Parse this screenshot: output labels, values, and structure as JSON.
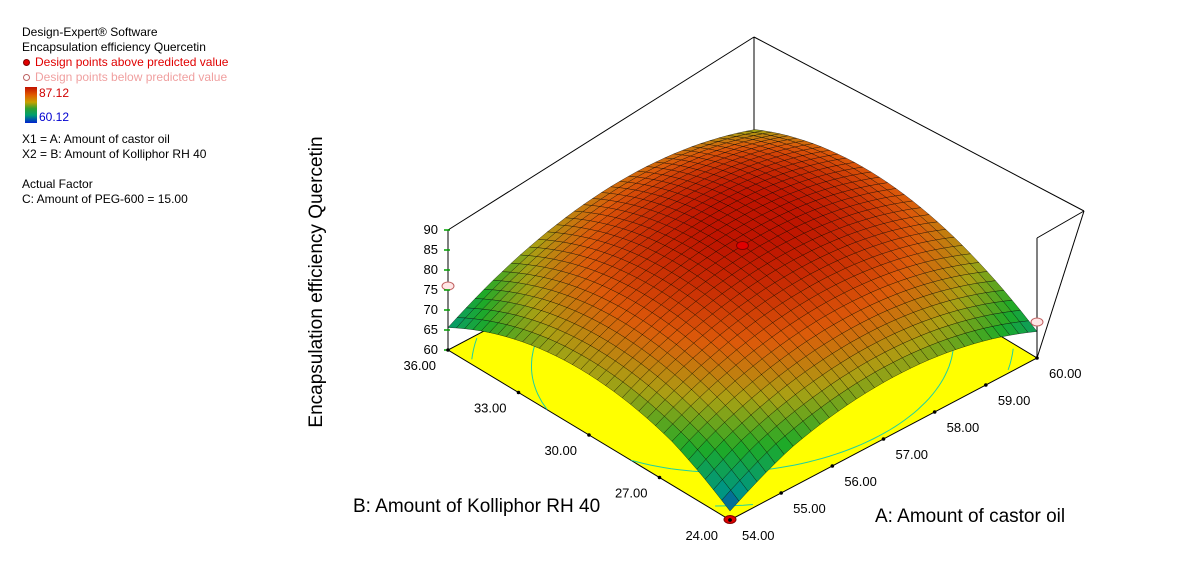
{
  "header": {
    "software": "Design-Expert® Software",
    "response": "Encapsulation efficiency Quercetin",
    "above_label": "Design points above predicted value",
    "below_label": "Design points below predicted value",
    "color_max": "87.12",
    "color_min": "60.12",
    "x1_label": "X1 = A: Amount of castor oil",
    "x2_label": "X2 = B: Amount of Kolliphor RH 40",
    "actual_factor_title": "Actual Factor",
    "actual_factor_value": "C: Amount of PEG-600 = 15.00"
  },
  "colors": {
    "above_point": "#e00000",
    "below_point": "#ffffff",
    "floor": "#ffff00",
    "contour_high": "#e02020",
    "contour_mid": "#20d0a0"
  },
  "chart_data": {
    "type": "surface-3d",
    "response": "Encapsulation efficiency Quercetin",
    "x_axis": {
      "label": "A: Amount of castor oil",
      "range": [
        54,
        60
      ],
      "ticks": [
        "54.00",
        "55.00",
        "56.00",
        "57.00",
        "58.00",
        "59.00",
        "60.00"
      ]
    },
    "y_axis": {
      "label": "B: Amount of Kolliphor RH 40",
      "range": [
        24,
        36
      ],
      "ticks": [
        "24.00",
        "27.00",
        "30.00",
        "33.00",
        "36.00"
      ]
    },
    "z_axis": {
      "label": "Encapsulation efficiency Quercetin",
      "range": [
        60,
        90
      ],
      "ticks": [
        "60",
        "65",
        "70",
        "75",
        "80",
        "85",
        "90"
      ]
    },
    "color_range": [
      60.12,
      87.12
    ],
    "actual_factor": "C: Amount of PEG-600 = 15.00",
    "design_points": [
      {
        "a": 54,
        "b": 24,
        "z": 60.12,
        "position": "above"
      },
      {
        "a": 57,
        "b": 30,
        "z": 87.12,
        "position": "above"
      },
      {
        "a": 54,
        "b": 36,
        "z": 76,
        "position": "below"
      },
      {
        "a": 60,
        "b": 24,
        "z": 69,
        "position": "below"
      }
    ]
  }
}
